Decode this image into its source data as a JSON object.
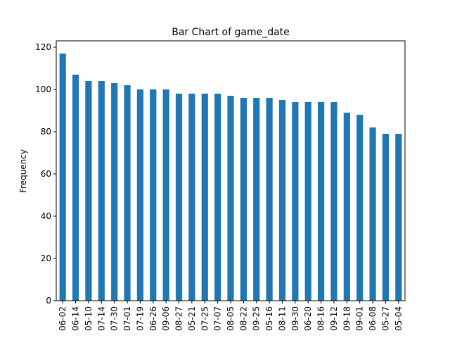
{
  "chart_data": {
    "type": "bar",
    "title": "Bar Chart of game_date",
    "xlabel": "",
    "ylabel": "Frequency",
    "ylim": [
      0,
      123
    ],
    "yticks": [
      0,
      20,
      40,
      60,
      80,
      100,
      120
    ],
    "grid": false,
    "bar_color": "#1f77b4",
    "categories": [
      "06-02",
      "06-14",
      "05-10",
      "07-14",
      "07-30",
      "07-01",
      "07-19",
      "06-26",
      "09-06",
      "08-27",
      "05-21",
      "07-25",
      "07-07",
      "08-05",
      "08-22",
      "09-25",
      "05-16",
      "08-11",
      "09-30",
      "06-20",
      "08-16",
      "09-12",
      "09-18",
      "09-01",
      "06-08",
      "05-27",
      "05-04"
    ],
    "values": [
      117,
      107,
      104,
      104,
      103,
      102,
      100,
      100,
      100,
      98,
      98,
      98,
      98,
      97,
      96,
      96,
      96,
      95,
      94,
      94,
      94,
      94,
      89,
      88,
      82,
      79,
      79
    ]
  }
}
